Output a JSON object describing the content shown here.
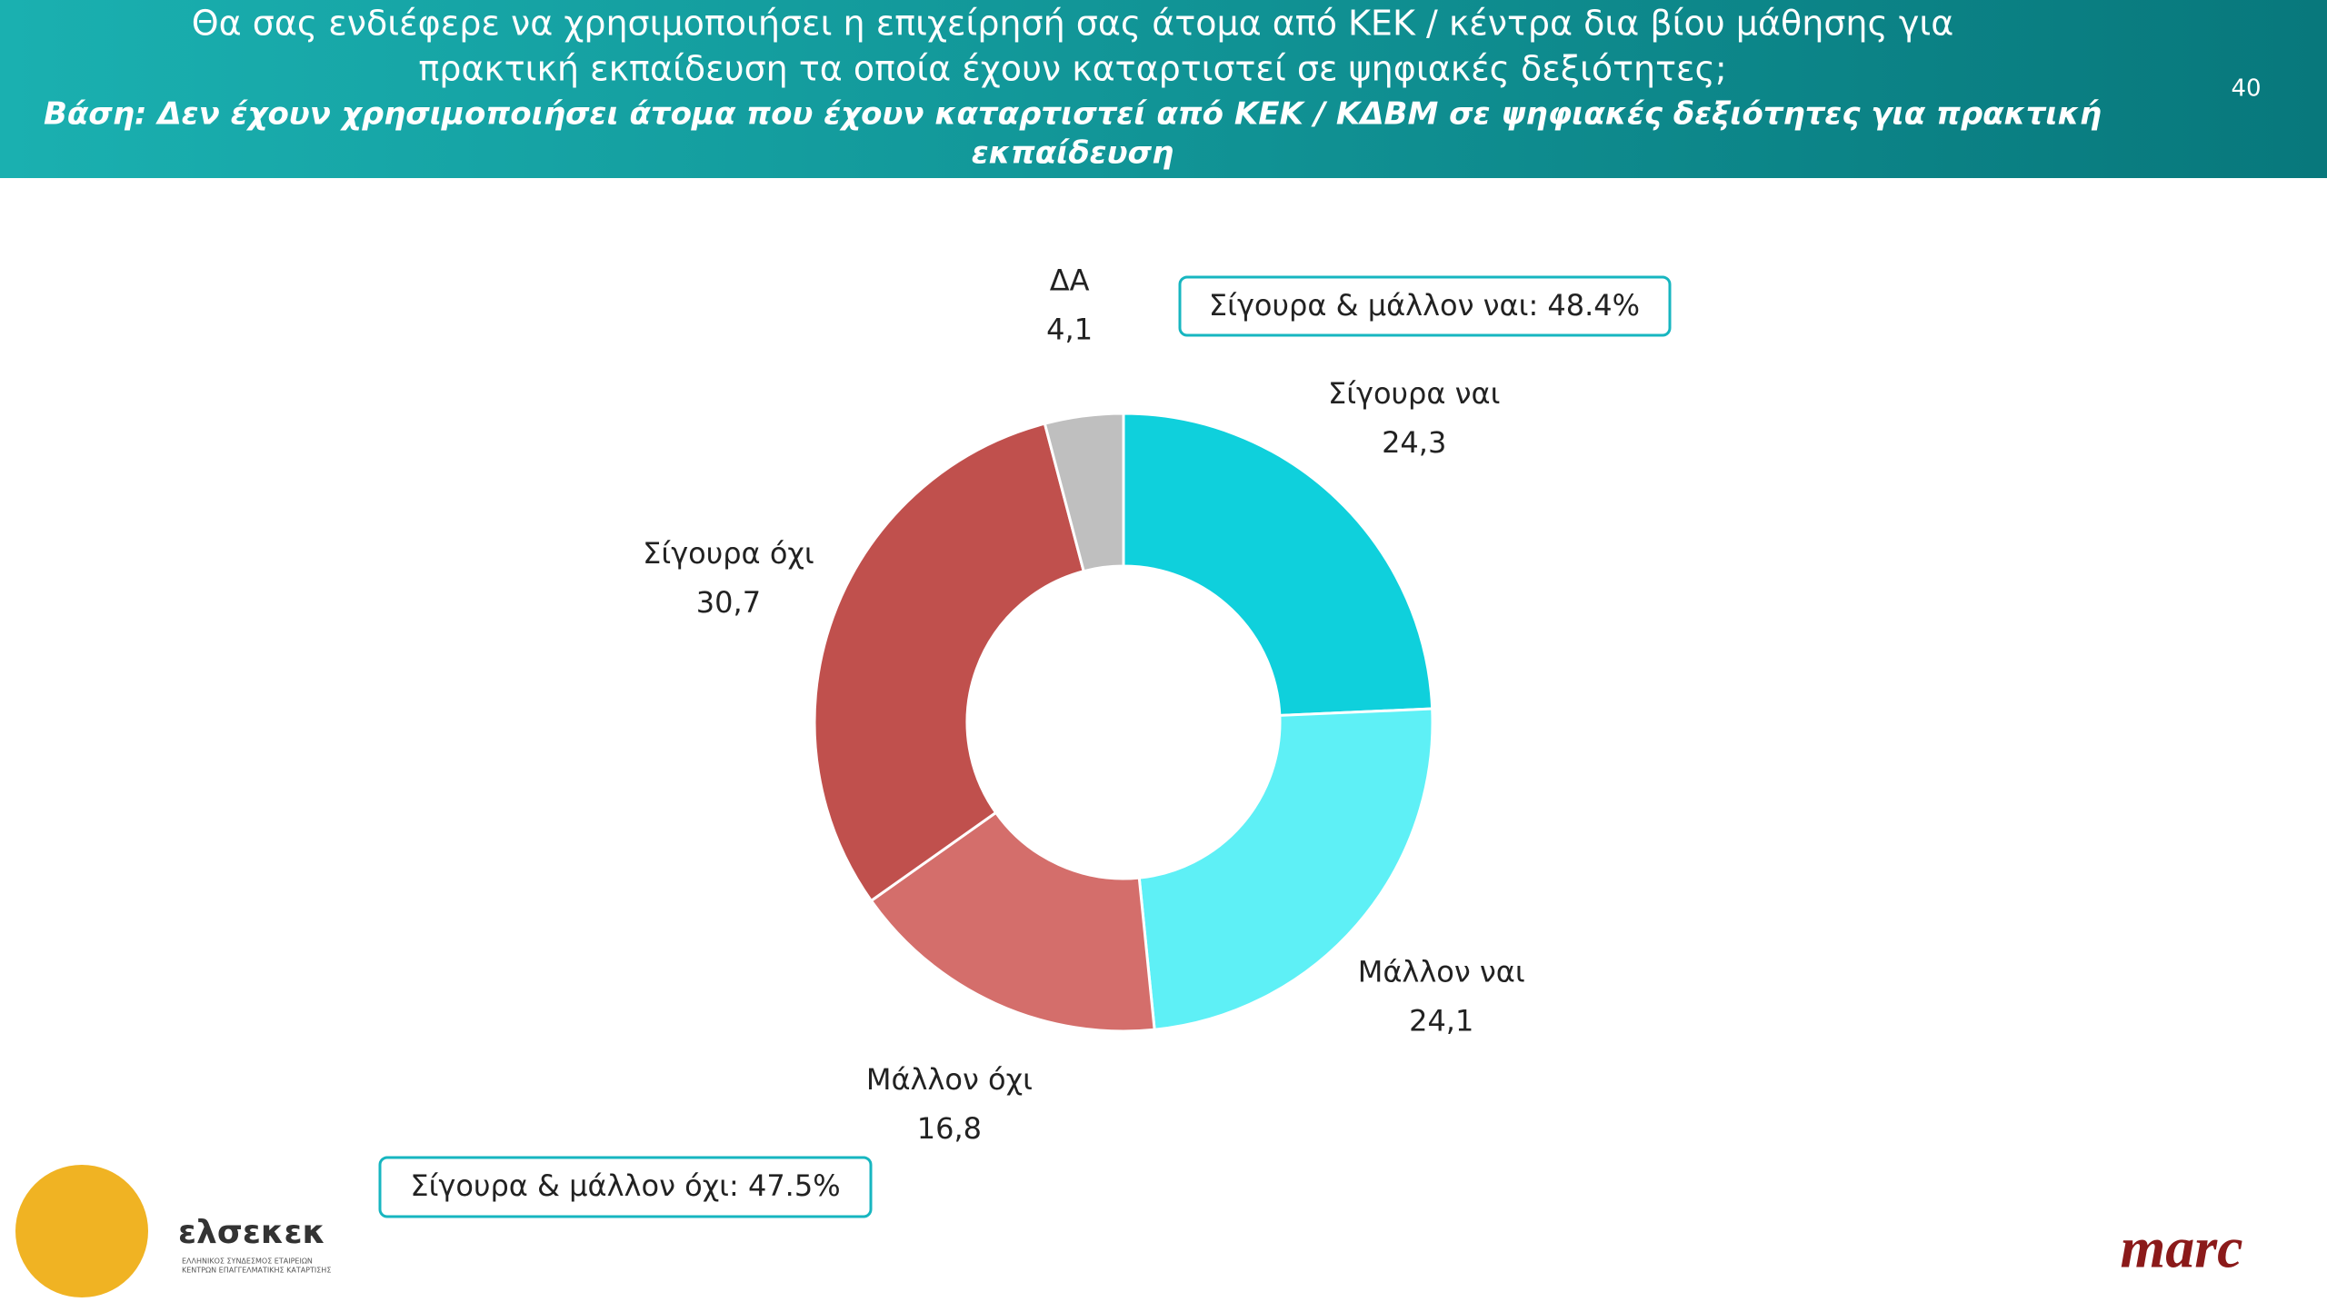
{
  "header": {
    "title_lines": [
      "Θα σας ενδιέφερε να χρησιμοποιήσει η επιχείρησή σας άτομα από ΚΕΚ / κέντρα δια βίου μάθησης για",
      "πρακτική εκπαίδευση τα οποία έχουν καταρτιστεί σε ψηφιακές δεξιότητες;"
    ],
    "subtitle_lines": [
      "Βάση: Δεν έχουν χρησιμοποιήσει άτομα που έχουν καταρτιστεί από ΚΕΚ / ΚΔΒΜ σε ψηφιακές δεξιότητες για πρακτική",
      "εκπαίδευση"
    ],
    "page_number": "40"
  },
  "chart_data": {
    "type": "donut",
    "categories": [
      "Σίγουρα ναι",
      "Μάλλον ναι",
      "Μάλλον όχι",
      "Σίγουρα όχι",
      "ΔΑ"
    ],
    "values": [
      24.3,
      24.1,
      16.8,
      30.7,
      4.1
    ],
    "value_labels": [
      "24,3",
      "24,1",
      "16,8",
      "30,7",
      "4,1"
    ],
    "colors": [
      "#0fd0dc",
      "#5ef0f6",
      "#d46e6b",
      "#c0504d",
      "#bfbfbf"
    ],
    "annotations": [
      "Σίγουρα & μάλλον ναι: 48.4%",
      "Σίγουρα & μάλλον όχι: 47.5%"
    ]
  },
  "logos": {
    "left": "ελσεκεκ",
    "left_sub": [
      "ΕΛΛΗΝΙΚΟΣ ΣΥΝΔΕΣΜΟΣ ΕΤΑΙΡΕΙΩΝ",
      "ΚΕΝΤΡΩΝ ΕΠΑΓΓΕΛΜΑΤΙΚΗΣ ΚΑΤΑΡΤΙΣΗΣ"
    ],
    "right": "marc"
  }
}
